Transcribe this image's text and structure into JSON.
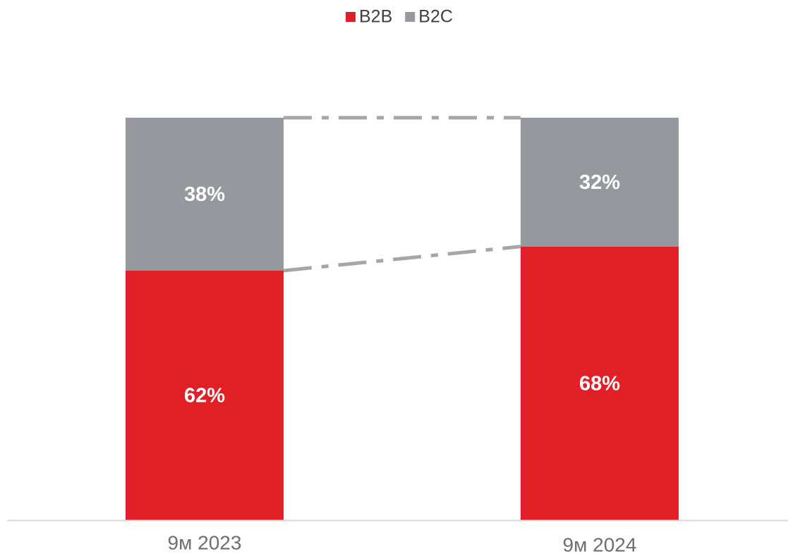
{
  "chart_data": {
    "type": "stacked_bar",
    "categories": [
      "9м 2023",
      "9м 2024"
    ],
    "series": [
      {
        "name": "B2B",
        "color": "#e01f26",
        "values": [
          62,
          68
        ],
        "value_labels": [
          "62%",
          "68%"
        ]
      },
      {
        "name": "B2C",
        "color": "#95989d",
        "values": [
          38,
          32
        ],
        "value_labels": [
          "38%",
          "32%"
        ]
      }
    ],
    "ylim": [
      0,
      100
    ],
    "legend": "top",
    "connector_color": "#a6a6a6"
  }
}
